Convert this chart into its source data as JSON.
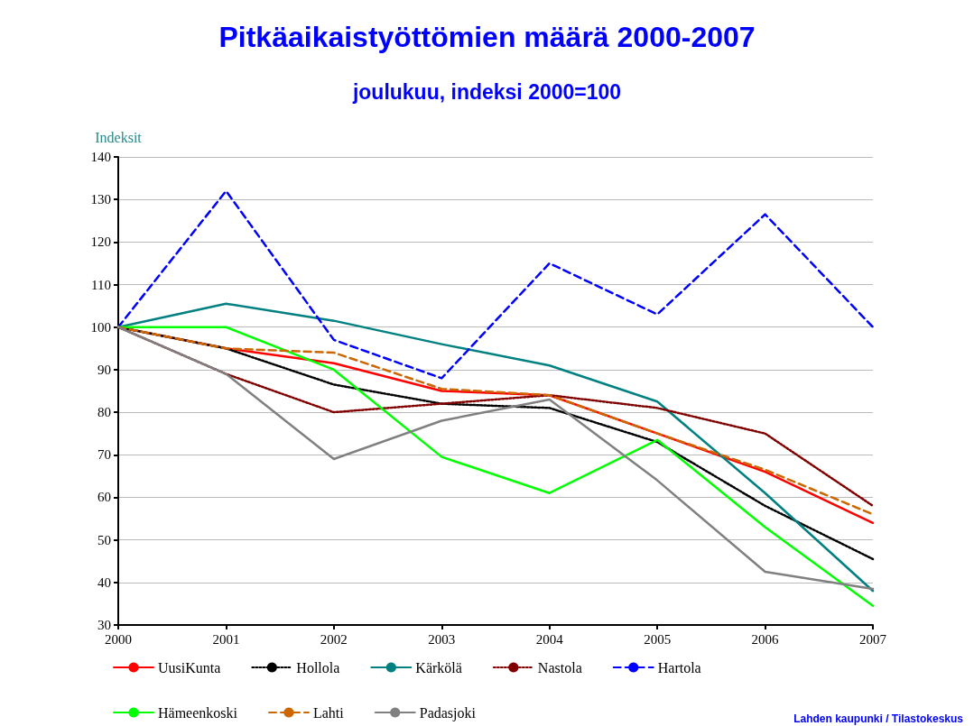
{
  "chart_data": {
    "type": "line",
    "title": "Pitkäaikaistyöttömien määrä 2000-2007",
    "subtitle": "joulukuu, indeksi 2000=100",
    "ylabel": "Indeksit",
    "categories": [
      "2000",
      "2001",
      "2002",
      "2003",
      "2004",
      "2005",
      "2006",
      "2007"
    ],
    "series": [
      {
        "name": "UusiKunta",
        "color": "#ff0000",
        "line_style": "solid",
        "values": [
          100,
          95,
          91.5,
          85,
          84,
          75,
          66,
          54
        ]
      },
      {
        "name": "Hollola",
        "color": "#000000",
        "line_style": "dotted",
        "values": [
          100,
          95,
          86.5,
          82,
          81,
          73,
          58,
          45.5
        ]
      },
      {
        "name": "Kärkölä",
        "color": "#008080",
        "line_style": "solid",
        "values": [
          100,
          105.5,
          101.5,
          96,
          91,
          82.5,
          61,
          38
        ]
      },
      {
        "name": "Nastola",
        "color": "#800000",
        "line_style": "dotted",
        "values": [
          100,
          89,
          80,
          82,
          84,
          81,
          75,
          58
        ]
      },
      {
        "name": "Hartola",
        "color": "#0000ff",
        "line_style": "dashed",
        "values": [
          100,
          132,
          97,
          88,
          115,
          103,
          126.5,
          100
        ]
      },
      {
        "name": "Hämeenkoski",
        "color": "#00ff00",
        "line_style": "solid",
        "values": [
          100,
          100,
          90,
          69.5,
          61,
          73.5,
          53,
          34.5
        ]
      },
      {
        "name": "Lahti",
        "color": "#cc6600",
        "line_style": "dashed",
        "values": [
          100,
          95,
          94,
          85.5,
          84,
          75,
          66.5,
          56
        ]
      },
      {
        "name": "Padasjoki",
        "color": "#808080",
        "line_style": "solid",
        "values": [
          100,
          89,
          69,
          78,
          83,
          64,
          42.5,
          38.5
        ]
      }
    ],
    "ylim": [
      30,
      140
    ],
    "yticks": [
      30,
      40,
      50,
      60,
      70,
      80,
      90,
      100,
      110,
      120,
      130,
      140
    ],
    "grid": "y",
    "legend": "bottom",
    "marker": "none",
    "annotations": [
      "Lahden kaupunki / Tilastokeskus"
    ]
  }
}
